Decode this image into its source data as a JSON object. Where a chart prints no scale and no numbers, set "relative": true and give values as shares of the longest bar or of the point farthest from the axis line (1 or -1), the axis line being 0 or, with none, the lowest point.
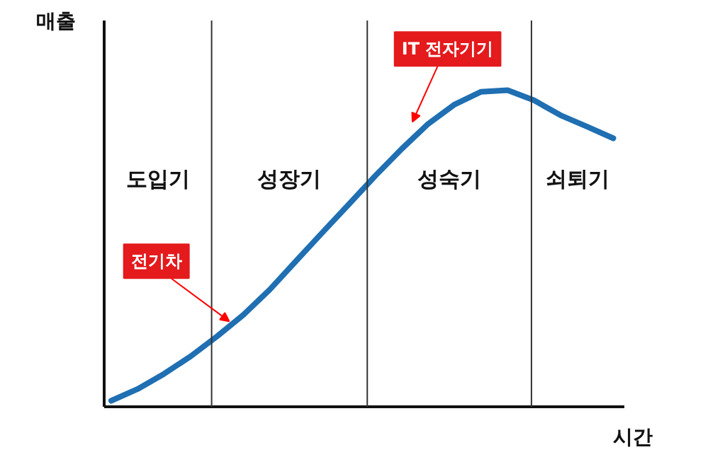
{
  "chart_data": {
    "type": "line",
    "relative": true,
    "xlabel": "시간",
    "ylabel": "매출",
    "grid": false,
    "categories": [
      null,
      null,
      null,
      null,
      null,
      null,
      null,
      null,
      null,
      null,
      null,
      null,
      null,
      null,
      null,
      null,
      null,
      null,
      null,
      null
    ],
    "series": [
      {
        "color": "#1f6fb2",
        "values": [
          0.019,
          0.056,
          0.104,
          0.159,
          0.222,
          0.29,
          0.37,
          0.461,
          0.551,
          0.64,
          0.73,
          0.815,
          0.894,
          0.955,
          0.995,
          1,
          0.968,
          0.921,
          0.885,
          0.848
        ]
      }
    ],
    "annotations": [
      "도입기",
      "성장기",
      "성숙기",
      "쇠퇴기",
      "전기차",
      "IT 전자기기"
    ]
  }
}
